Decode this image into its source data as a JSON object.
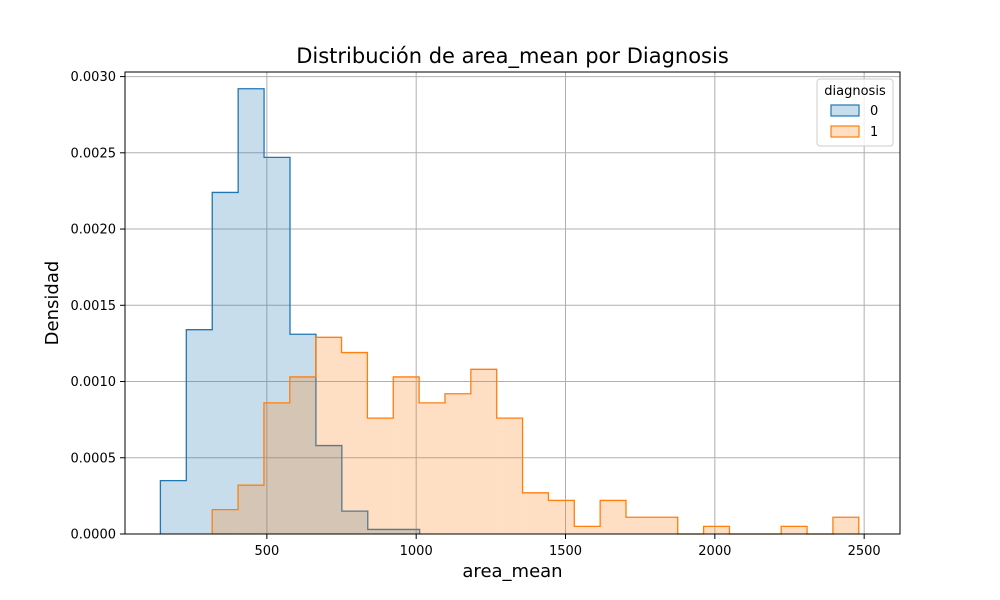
{
  "chart_data": {
    "type": "histogram",
    "title": "Distribución de area_mean por Diagnosis",
    "xlabel": "area_mean",
    "ylabel": "Densidad",
    "xlim": [
      25,
      2620
    ],
    "ylim": [
      0,
      0.00303
    ],
    "grid": true,
    "legend": {
      "title": "diagnosis",
      "position": "top-right"
    },
    "xticks": [
      {
        "value": 500,
        "label": "500"
      },
      {
        "value": 1000,
        "label": "1000"
      },
      {
        "value": 1500,
        "label": "1500"
      },
      {
        "value": 2000,
        "label": "2000"
      },
      {
        "value": 2500,
        "label": "2500"
      }
    ],
    "yticks": [
      {
        "value": 0,
        "label": "0.0000"
      },
      {
        "value": 0.0005,
        "label": "0.0005"
      },
      {
        "value": 0.001,
        "label": "0.0010"
      },
      {
        "value": 0.0015,
        "label": "0.0015"
      },
      {
        "value": 0.002,
        "label": "0.0020"
      },
      {
        "value": 0.0025,
        "label": "0.0025"
      },
      {
        "value": 0.003,
        "label": "0.0030"
      }
    ],
    "series": [
      {
        "name": "0",
        "edge_color": "#1f77b4",
        "fill_color": "#1f77b4",
        "fill_opacity": 0.25,
        "bin_edges": [
          143.5,
          230.3,
          317.1,
          403.9,
          490.7,
          577.5,
          664.3,
          751.1,
          837.9,
          924.7,
          1011.5
        ],
        "values": [
          0.00035,
          0.00134,
          0.00224,
          0.00292,
          0.00247,
          0.00131,
          0.00058,
          0.00015,
          3e-05,
          3e-05
        ]
      },
      {
        "name": "1",
        "edge_color": "#ff7f0e",
        "fill_color": "#ff7f0e",
        "fill_opacity": 0.25,
        "bin_edges": [
          317,
          403.6,
          490.2,
          576.8,
          663.4,
          750,
          836.6,
          923.2,
          1009.8,
          1096.4,
          1183,
          1269.6,
          1356.2,
          1442.8,
          1529.4,
          1616,
          1702.6,
          1789.2,
          1875.8,
          1962.4,
          2049,
          2135.6,
          2222.2,
          2308.8,
          2395.4,
          2482
        ],
        "values": [
          0.00016,
          0.00032,
          0.00086,
          0.00103,
          0.00129,
          0.00119,
          0.00076,
          0.00103,
          0.00086,
          0.00092,
          0.00108,
          0.00076,
          0.00027,
          0.00022,
          5e-05,
          0.00022,
          0.00011,
          0.00011,
          0,
          5e-05,
          0,
          0,
          5e-05,
          0,
          0.00011
        ]
      }
    ]
  }
}
